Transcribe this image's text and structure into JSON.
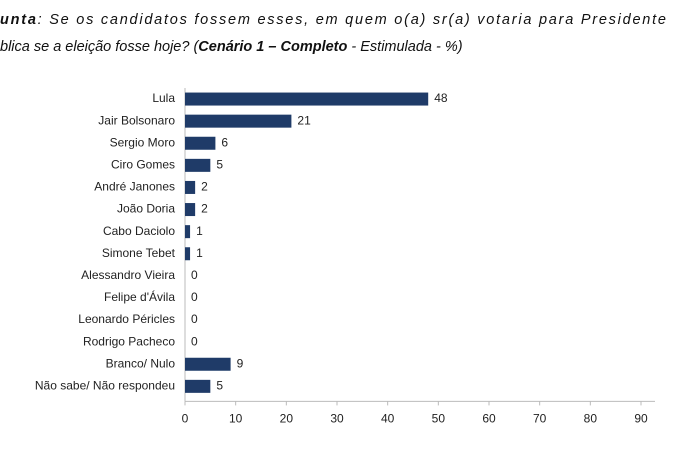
{
  "chart_data": {
    "type": "barh",
    "title_lines": [
      [
        {
          "text": "unta",
          "bold": true
        },
        {
          "text": ": Se os candidatos fossem esses, em quem o(a) sr(a) votaria para Presidente",
          "bold": false
        }
      ],
      [
        {
          "text": "blica se a eleição fosse hoje? (",
          "bold": false
        },
        {
          "text": "Cenário 1 – Completo",
          "bold": true
        },
        {
          "text": " - Estimulada - %)",
          "bold": false
        }
      ]
    ],
    "categories": [
      "Lula",
      "Jair Bolsonaro",
      "Sergio Moro",
      "Ciro Gomes",
      "André Janones",
      "João Doria",
      "Cabo Daciolo",
      "Simone Tebet",
      "Alessandro Vieira",
      "Felipe d'Ávila",
      "Leonardo Péricles",
      "Rodrigo Pacheco",
      "Branco/ Nulo",
      "Não sabe/ Não respondeu"
    ],
    "values": [
      48,
      21,
      6,
      5,
      2,
      2,
      1,
      1,
      0,
      0,
      0,
      0,
      9,
      5
    ],
    "color": "#1f3b68",
    "xlim": [
      0,
      90
    ],
    "xticks": [
      0,
      10,
      20,
      30,
      40,
      50,
      60,
      70,
      80,
      90
    ]
  }
}
